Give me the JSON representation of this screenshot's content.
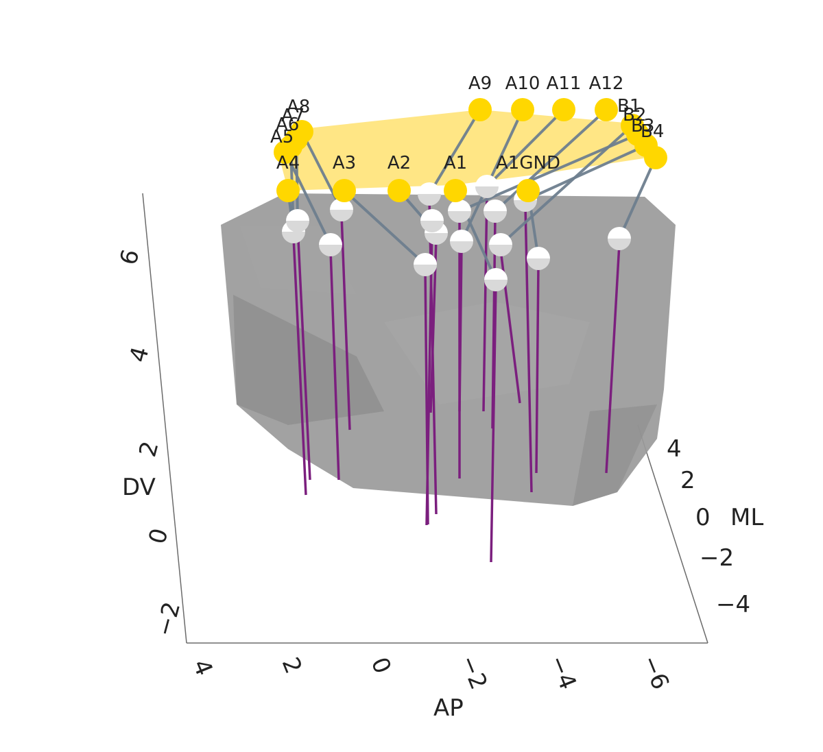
{
  "chart_data": {
    "type": "scatter3d",
    "axes": {
      "ap": {
        "title": "AP",
        "ticks": [
          4,
          2,
          0,
          -2,
          -4,
          -6
        ],
        "tick_labels": [
          "4",
          "2",
          "0",
          "−2",
          "−4",
          "−6"
        ]
      },
      "dv": {
        "title": "DV",
        "ticks": [
          6,
          4,
          2,
          0,
          -2
        ],
        "tick_labels": [
          "6",
          "4",
          "2",
          "0",
          "−2"
        ]
      },
      "ml": {
        "title": "ML",
        "ticks": [
          4,
          2,
          0,
          -2,
          -4
        ],
        "tick_labels": [
          "4",
          "2",
          "0",
          "−2",
          "−4"
        ]
      }
    },
    "pads": [
      {
        "label": "A9"
      },
      {
        "label": "A10"
      },
      {
        "label": "A11"
      },
      {
        "label": "A12"
      },
      {
        "label": "B1"
      },
      {
        "label": "B2"
      },
      {
        "label": "B3"
      },
      {
        "label": "B4"
      },
      {
        "label": "A8"
      },
      {
        "label": "A7"
      },
      {
        "label": "A6"
      },
      {
        "label": "A5"
      },
      {
        "label": "A4"
      },
      {
        "label": "A3"
      },
      {
        "label": "A2"
      },
      {
        "label": "A1"
      },
      {
        "label": "A1GND"
      }
    ],
    "electrode_count": 17,
    "colors": {
      "brain_surface": "#9a9a9a",
      "headstage": "#ffe066",
      "pad": "#ffd700",
      "wire": "#6e7f8f",
      "shaft": "#7b1f7e",
      "electrode_tip": "#d9d9d9"
    }
  }
}
